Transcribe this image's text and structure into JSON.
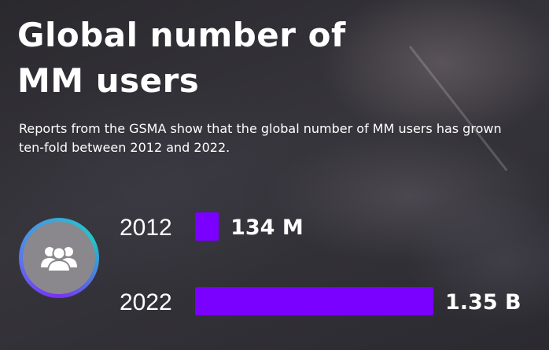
{
  "title": "Global number of\nMM users",
  "subtitle": "Reports from the GSMA show that the global number of MM users has grown ten-fold between 2012 and 2022.",
  "icon": "users-group-icon",
  "colors": {
    "bar": "#7a00ff",
    "text": "#ffffff",
    "icon_bg": "#8a888c"
  },
  "chart_data": {
    "type": "bar",
    "orientation": "horizontal",
    "categories": [
      "2012",
      "2022"
    ],
    "values": [
      134,
      1350
    ],
    "value_labels": [
      "134 M",
      "1.35 B"
    ],
    "unit": "millions of users"
  }
}
